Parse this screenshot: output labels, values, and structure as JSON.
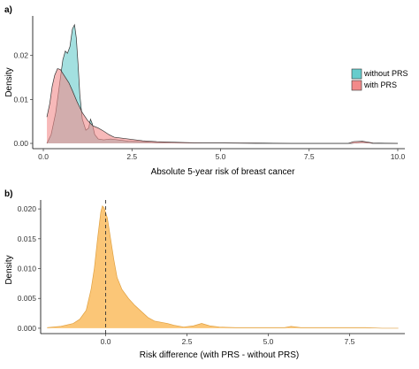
{
  "chart_data": [
    {
      "panel_label": "a)",
      "type": "area",
      "xlabel": "Absolute 5-year risk of breast cancer",
      "ylabel": "Density",
      "xlim": [
        -0.3,
        10.2
      ],
      "ylim": [
        -0.0012,
        0.029
      ],
      "xticks": [
        0.0,
        2.5,
        5.0,
        7.5,
        10.0
      ],
      "xtick_labels": [
        "0.0",
        "2.5",
        "5.0",
        "7.5",
        "10.0"
      ],
      "yticks": [
        0.0,
        0.01,
        0.02
      ],
      "ytick_labels": [
        "0.00",
        "0.01",
        "0.02"
      ],
      "grid": false,
      "legend_position": "right",
      "series": [
        {
          "name": "without PRS",
          "color": "#66cccc",
          "x": [
            0.1,
            0.22,
            0.35,
            0.45,
            0.55,
            0.62,
            0.68,
            0.75,
            0.82,
            0.88,
            0.93,
            0.98,
            1.03,
            1.1,
            1.2,
            1.28,
            1.33,
            1.38,
            1.45,
            1.55,
            1.7,
            1.9,
            2.1,
            2.4,
            2.8,
            3.2,
            3.6,
            4.0,
            5.0,
            6.0,
            7.0,
            8.0,
            8.7,
            9.0,
            9.3,
            10.0
          ],
          "values": [
            0.0,
            0.002,
            0.007,
            0.013,
            0.019,
            0.021,
            0.0205,
            0.022,
            0.026,
            0.027,
            0.024,
            0.018,
            0.011,
            0.0055,
            0.003,
            0.0035,
            0.0055,
            0.0045,
            0.002,
            0.001,
            0.0008,
            0.001,
            0.0008,
            0.0005,
            0.0004,
            0.0002,
            0.0002,
            0.0001,
            0.0001,
            0.0,
            0.0,
            0.0,
            0.0,
            0.0003,
            0.0,
            0.0
          ]
        },
        {
          "name": "with PRS",
          "color": "#f28a8a",
          "x": [
            0.1,
            0.18,
            0.25,
            0.32,
            0.4,
            0.48,
            0.56,
            0.64,
            0.72,
            0.82,
            0.95,
            1.1,
            1.25,
            1.4,
            1.55,
            1.7,
            1.85,
            2.0,
            2.2,
            2.5,
            2.8,
            3.2,
            3.6,
            4.0,
            4.5,
            5.0,
            6.0,
            7.0,
            8.0,
            8.6,
            8.75,
            9.0,
            9.3,
            10.0
          ],
          "values": [
            0.006,
            0.009,
            0.013,
            0.0155,
            0.017,
            0.0168,
            0.0158,
            0.0148,
            0.0138,
            0.012,
            0.0095,
            0.007,
            0.0052,
            0.004,
            0.0035,
            0.0028,
            0.002,
            0.0014,
            0.0012,
            0.0009,
            0.0006,
            0.0004,
            0.0003,
            0.0002,
            0.0001,
            0.0001,
            0.0001,
            0.0,
            0.0,
            0.0,
            0.0004,
            0.0005,
            0.0001,
            0.0
          ]
        }
      ]
    },
    {
      "panel_label": "b)",
      "type": "area",
      "xlabel": "Risk difference (with PRS -  without PRS)",
      "ylabel": "Density",
      "xlim": [
        -2.0,
        9.2
      ],
      "ylim": [
        -0.0009,
        0.0215
      ],
      "xticks": [
        0.0,
        2.5,
        5.0,
        7.5
      ],
      "xtick_labels": [
        "0.0",
        "2.5",
        "5.0",
        "7.5"
      ],
      "yticks": [
        0.0,
        0.005,
        0.01,
        0.015,
        0.02
      ],
      "ytick_labels": [
        "0.000",
        "0.005",
        "0.010",
        "0.015",
        "0.020"
      ],
      "grid": false,
      "reference_line_x": 0.0,
      "series": [
        {
          "color": "#fbc068",
          "x": [
            -1.8,
            -1.4,
            -1.0,
            -0.8,
            -0.6,
            -0.45,
            -0.35,
            -0.25,
            -0.15,
            -0.1,
            -0.05,
            0.05,
            0.15,
            0.25,
            0.35,
            0.5,
            0.7,
            0.9,
            1.1,
            1.3,
            1.5,
            1.7,
            1.9,
            2.1,
            2.4,
            2.7,
            2.95,
            3.2,
            3.5,
            4.0,
            4.5,
            5.0,
            5.5,
            5.7,
            6.0,
            6.5,
            7.0,
            7.5,
            8.0,
            8.5,
            9.0
          ],
          "values": [
            0.0001,
            0.0003,
            0.0008,
            0.0015,
            0.003,
            0.0065,
            0.01,
            0.015,
            0.0195,
            0.0205,
            0.0202,
            0.0185,
            0.015,
            0.0115,
            0.0085,
            0.0065,
            0.005,
            0.0038,
            0.0028,
            0.0018,
            0.0012,
            0.001,
            0.0008,
            0.0005,
            0.0002,
            0.0004,
            0.0008,
            0.0004,
            0.0002,
            0.0001,
            0.0001,
            0.0001,
            0.0001,
            0.0003,
            0.0001,
            0.0001,
            0.0001,
            0.0001,
            0.0001,
            0.0,
            0.0
          ]
        }
      ]
    }
  ]
}
